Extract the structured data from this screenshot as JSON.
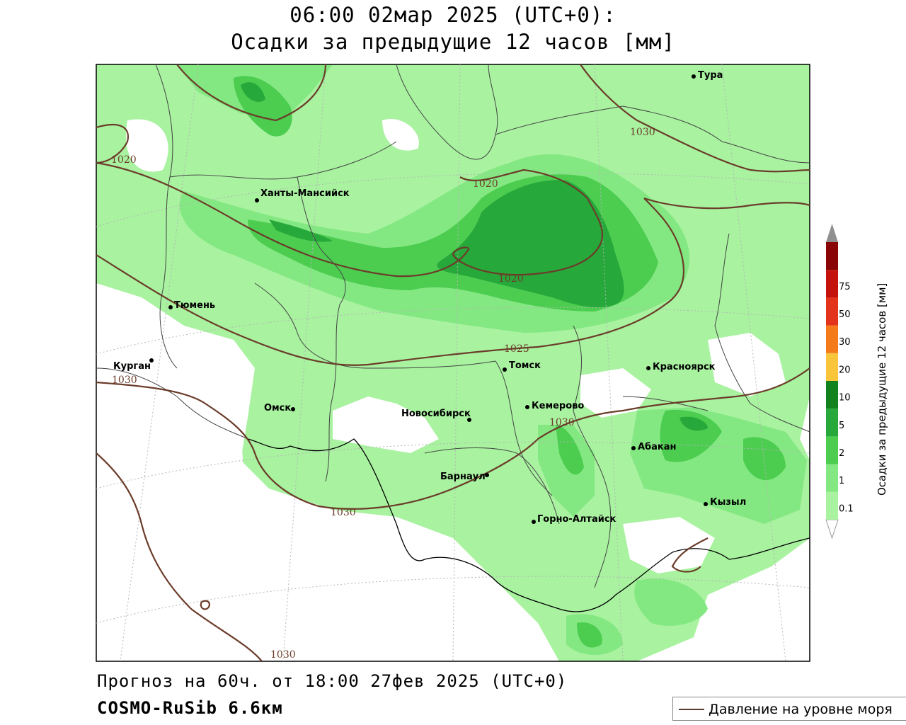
{
  "title": {
    "line1": "06:00 02мар 2025 (UTC+0):",
    "line2": "Осадки за предыдущие 12 часов [мм]"
  },
  "footer": {
    "forecast": "Прогноз на 60ч. от 18:00 27фев 2025 (UTC+0)",
    "model": "COSMO-RuSib 6.6км"
  },
  "legend": {
    "isobar_label": "Давление на уровне моря",
    "isobar_color": "#5a3a2a"
  },
  "colorbar": {
    "title": "Осадки за предыдущие 12 часов [мм]",
    "levels": [
      "0.1",
      "1",
      "2",
      "5",
      "10",
      "20",
      "30",
      "50",
      "75"
    ],
    "colors": [
      "#a8f2a0",
      "#84e882",
      "#4ccd50",
      "#27a83a",
      "#12821f",
      "#f9c53a",
      "#f47a1a",
      "#e3331a",
      "#c4110b",
      "#8a0505",
      "#909090"
    ]
  },
  "cities": [
    {
      "name": "Тура"
    },
    {
      "name": "Ханты-Мансийск"
    },
    {
      "name": "Тюмень"
    },
    {
      "name": "Курган"
    },
    {
      "name": "Омск"
    },
    {
      "name": "Новосибирск"
    },
    {
      "name": "Томск"
    },
    {
      "name": "Кемерово"
    },
    {
      "name": "Красноярск"
    },
    {
      "name": "Абакан"
    },
    {
      "name": "Барнаул"
    },
    {
      "name": "Горно-Алтайск"
    },
    {
      "name": "Кызыл"
    }
  ],
  "isobar_labels": [
    "1020",
    "1020",
    "1020",
    "1025",
    "1030",
    "1030",
    "1030",
    "1030",
    "1030"
  ]
}
